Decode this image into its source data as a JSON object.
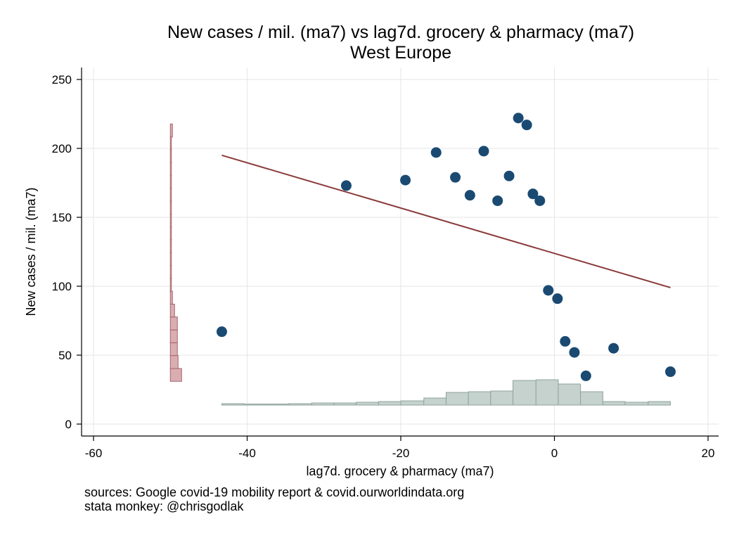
{
  "chart_data": {
    "type": "scatter",
    "title": "New cases / mil. (ma7) vs lag7d. grocery & pharmacy (ma7)",
    "subtitle": "West Europe",
    "xlabel": "lag7d. grocery & pharmacy (ma7)",
    "ylabel": "New cases / mil. (ma7)",
    "xlim": [
      -62,
      21
    ],
    "ylim": [
      -8,
      258
    ],
    "xticks": [
      -60,
      -40,
      -20,
      0,
      20
    ],
    "yticks": [
      0,
      50,
      100,
      150,
      200,
      250
    ],
    "grid": true,
    "legend": "none",
    "colors": {
      "points": "#1a4a72",
      "fit_line": "#8b3a3a",
      "x_hist": "#c5d2cd",
      "y_hist": "#d8aeb2"
    },
    "points": [
      {
        "x": -43.3,
        "y": 67
      },
      {
        "x": -27.1,
        "y": 173
      },
      {
        "x": -19.4,
        "y": 177
      },
      {
        "x": -15.4,
        "y": 197
      },
      {
        "x": -12.9,
        "y": 179
      },
      {
        "x": -11.0,
        "y": 166
      },
      {
        "x": -9.2,
        "y": 198
      },
      {
        "x": -7.4,
        "y": 162
      },
      {
        "x": -5.9,
        "y": 180
      },
      {
        "x": -4.7,
        "y": 222
      },
      {
        "x": -3.6,
        "y": 217
      },
      {
        "x": -2.8,
        "y": 167
      },
      {
        "x": -1.9,
        "y": 162
      },
      {
        "x": -0.8,
        "y": 97
      },
      {
        "x": 0.4,
        "y": 91
      },
      {
        "x": 1.4,
        "y": 60
      },
      {
        "x": 2.6,
        "y": 52
      },
      {
        "x": 4.1,
        "y": 35
      },
      {
        "x": 7.7,
        "y": 55
      },
      {
        "x": 15.1,
        "y": 38
      }
    ],
    "fit_line": {
      "x": [
        -43.3,
        15.1
      ],
      "y": [
        195,
        99
      ]
    },
    "x_histogram": {
      "bin_edges": [
        -43.3,
        -40.4,
        -37.5,
        -34.6,
        -31.6,
        -28.7,
        -25.8,
        -22.9,
        -20.0,
        -17.0,
        -14.1,
        -11.2,
        -8.3,
        -5.4,
        -2.4,
        0.5,
        3.4,
        6.3,
        9.2,
        12.2,
        15.1
      ],
      "heights": [
        1,
        0.5,
        0.5,
        1,
        1.5,
        1.5,
        2,
        2.5,
        3,
        5,
        9,
        9.5,
        10,
        17.5,
        18,
        15,
        9.5,
        2.5,
        2,
        2.5
      ]
    },
    "y_histogram": {
      "bin_edges": [
        31,
        40.3,
        49.7,
        59,
        68.3,
        77.7,
        87,
        96.3,
        105.7,
        115,
        124.3,
        133.7,
        143,
        152.3,
        161.7,
        171,
        180.3,
        189.7,
        199,
        208.3,
        217.7
      ],
      "heights": [
        16,
        11,
        10,
        10,
        10,
        6,
        3,
        1.5,
        1,
        0.7,
        0.5,
        0.5,
        0.5,
        0.5,
        0.5,
        0.8,
        1,
        1.5,
        1,
        3
      ]
    }
  },
  "footer": {
    "sources": "sources: Google covid-19 mobility report & covid.ourworldindata.org",
    "credit": "stata monkey: @chrisgodlak"
  }
}
